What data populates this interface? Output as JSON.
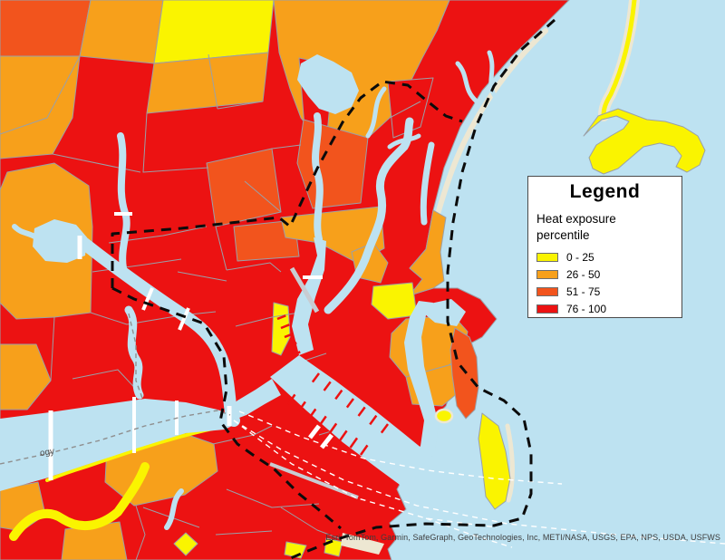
{
  "map": {
    "description": "Choropleth map of Boston-area census tracts shaded by heat exposure percentile, with city boundary dashed line, harbor, rivers and islands",
    "water_label_fragment": "ogy",
    "attribution": "Esri, TomTom, Garmin, SafeGraph, GeoTechnologies, Inc, METI/NASA, USGS, EPA, NPS, USDA, USFWS"
  },
  "legend": {
    "title": "Legend",
    "layer_title_line1": "Heat exposure",
    "layer_title_line2": "percentile",
    "items": [
      {
        "label": "0 - 25",
        "color": "#FAF400"
      },
      {
        "label": "26 - 50",
        "color": "#F7A01B"
      },
      {
        "label": "51 - 75",
        "color": "#F2541D"
      },
      {
        "label": "76 - 100",
        "color": "#EC1212"
      }
    ]
  },
  "colors": {
    "water": "#BDE2F1",
    "sand": "#EDE7D2",
    "tract_border": "#9AA0A8",
    "city_boundary": "#0B0B0B",
    "municipal_line": "#8F8F8F",
    "ferry_route": "#FFFFFF",
    "bridge": "#FFFFFF",
    "highway": "#C8CCD2"
  }
}
